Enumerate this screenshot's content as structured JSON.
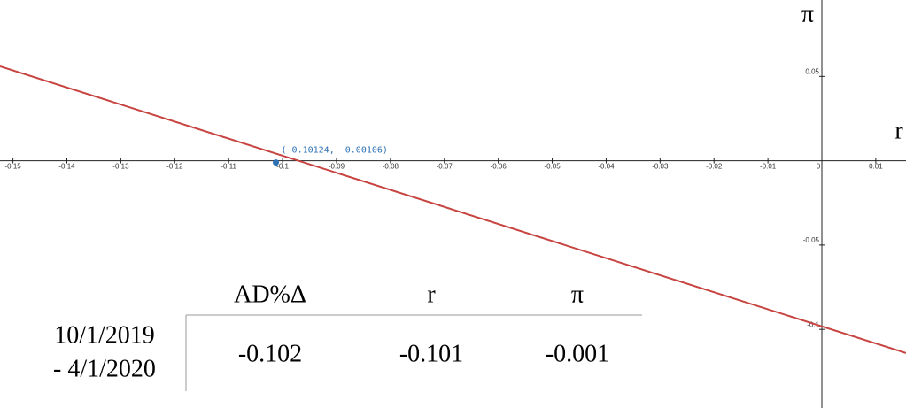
{
  "chart_data": {
    "type": "line",
    "x_label": "r",
    "y_label": "π",
    "x": [
      -0.1524,
      0.0156
    ],
    "series": [
      {
        "color": "#c74440",
        "values": [
          0.056,
          -0.114
        ]
      }
    ],
    "xlim": [
      -0.1524,
      0.0156
    ],
    "ylim": [
      -0.1466,
      0.0953
    ],
    "xticks": [
      -0.15,
      -0.14,
      -0.13,
      -0.12,
      -0.11,
      -0.1,
      -0.09,
      -0.08,
      -0.07,
      -0.06,
      -0.05,
      -0.04,
      -0.03,
      -0.02,
      -0.01,
      0,
      0.01
    ],
    "yticks": [
      0.05,
      -0.05,
      -0.1
    ],
    "annotation": {
      "x": -0.10124,
      "y": -0.00106,
      "label": "(−0.10124, −0.00106)",
      "color": "#2d70b3"
    }
  },
  "table": {
    "header": [
      "AD%Δ",
      "r",
      "π"
    ],
    "rows": [
      {
        "label": [
          "10/1/2019",
          "- 4/1/2020"
        ],
        "cells": [
          "-0.102",
          "-0.101",
          "-0.001"
        ]
      }
    ]
  }
}
